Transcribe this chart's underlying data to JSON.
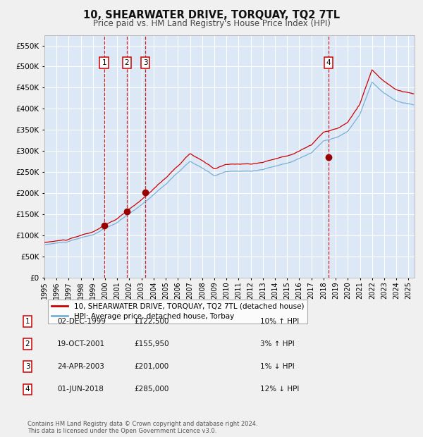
{
  "title": "10, SHEARWATER DRIVE, TORQUAY, TQ2 7TL",
  "subtitle": "Price paid vs. HM Land Registry's House Price Index (HPI)",
  "ylim": [
    0,
    575000
  ],
  "yticks": [
    0,
    50000,
    100000,
    150000,
    200000,
    250000,
    300000,
    350000,
    400000,
    450000,
    500000,
    550000
  ],
  "xlim_start": 1995.0,
  "xlim_end": 2025.5,
  "fig_bg": "#f0f0f0",
  "plot_bg": "#dce8f5",
  "grid_color": "#ffffff",
  "hpi_color": "#7ab0d4",
  "price_color": "#cc0000",
  "sale_marker_color": "#990000",
  "vline_color": "#cc0000",
  "legend_text1": "10, SHEARWATER DRIVE, TORQUAY, TQ2 7TL (detached house)",
  "legend_text2": "HPI: Average price, detached house, Torbay",
  "footer1": "Contains HM Land Registry data © Crown copyright and database right 2024.",
  "footer2": "This data is licensed under the Open Government Licence v3.0.",
  "sales": [
    {
      "num": 1,
      "date_label": "02-DEC-1999",
      "price_label": "£122,500",
      "rel_label": "10% ↑ HPI",
      "year": 1999.92,
      "price": 122500
    },
    {
      "num": 2,
      "date_label": "19-OCT-2001",
      "price_label": "£155,950",
      "rel_label": "3% ↑ HPI",
      "year": 2001.8,
      "price": 155950
    },
    {
      "num": 3,
      "date_label": "24-APR-2003",
      "price_label": "£201,000",
      "rel_label": "1% ↓ HPI",
      "year": 2003.32,
      "price": 201000
    },
    {
      "num": 4,
      "date_label": "01-JUN-2018",
      "price_label": "£285,000",
      "rel_label": "12% ↓ HPI",
      "year": 2018.42,
      "price": 285000
    }
  ],
  "hpi_key_years": [
    1995,
    1997,
    1999,
    2001,
    2003,
    2005,
    2007,
    2009,
    2010,
    2012,
    2013,
    2015,
    2017,
    2018,
    2019,
    2020,
    2021,
    2022,
    2023,
    2024,
    2025.4
  ],
  "hpi_key_vals": [
    78000,
    85000,
    100000,
    128000,
    170000,
    220000,
    272000,
    238000,
    248000,
    248000,
    253000,
    268000,
    293000,
    322000,
    328000,
    343000,
    382000,
    458000,
    432000,
    412000,
    403000
  ]
}
